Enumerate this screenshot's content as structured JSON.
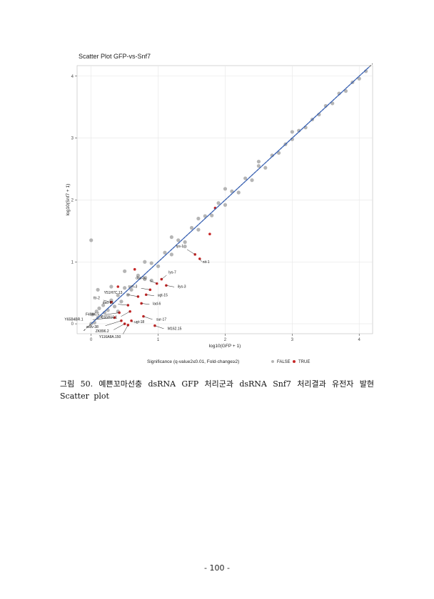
{
  "chart_data": {
    "type": "scatter",
    "title": "Scatter Plot GFP-vs-Snf7",
    "x_label": "log10(GFP + 1)",
    "y_label": "log10(Snf7 + 1)",
    "legend_title": "Significance (q-value2≤0.01, Fold-change≥2)",
    "xlim": [
      -0.21,
      4.2
    ],
    "ylim": [
      -0.16,
      4.17
    ],
    "xticks": [
      0,
      1,
      2,
      3,
      4
    ],
    "yticks": [
      0,
      1,
      2,
      3,
      4
    ],
    "grid": true,
    "series": [
      {
        "name": "FALSE",
        "color": "#b5b5b5",
        "x": [
          0,
          0.02,
          0.05,
          0.08,
          0.1,
          0.12,
          0.15,
          0.18,
          0.2,
          0.25,
          0.3,
          0.35,
          0.4,
          0.45,
          0.5,
          0.55,
          0.6,
          0.7,
          0.8,
          0.9,
          1.0,
          1.1,
          1.2,
          1.3,
          1.4,
          1.5,
          1.6,
          1.7,
          1.8,
          1.9,
          2.0,
          2.1,
          2.2,
          2.3,
          2.4,
          2.5,
          2.6,
          2.7,
          2.8,
          2.9,
          3.0,
          3.1,
          3.2,
          3.3,
          3.4,
          3.5,
          3.6,
          3.7,
          3.8,
          3.9,
          4.0,
          4.1,
          0.0,
          0.1,
          0.3,
          0.5,
          0.8,
          1.2,
          1.6,
          2.0,
          2.5,
          3.0,
          0.4,
          0.9,
          1.4
        ],
        "values": [
          0,
          0.15,
          0.02,
          0.2,
          0.1,
          0.25,
          0.12,
          0.3,
          0.18,
          0.22,
          0.38,
          0.28,
          0.46,
          0.36,
          0.58,
          0.47,
          0.55,
          0.78,
          0.72,
          0.98,
          0.93,
          1.15,
          1.12,
          1.35,
          1.32,
          1.55,
          1.52,
          1.74,
          1.75,
          1.95,
          1.92,
          2.14,
          2.12,
          2.35,
          2.32,
          2.55,
          2.52,
          2.72,
          2.76,
          2.9,
          2.98,
          3.12,
          3.17,
          3.3,
          3.38,
          3.52,
          3.56,
          3.72,
          3.76,
          3.9,
          3.96,
          4.08,
          1.35,
          0.55,
          0.6,
          0.85,
          1.0,
          1.4,
          1.7,
          2.18,
          2.62,
          3.1,
          0.2,
          0.7,
          1.25
        ]
      },
      {
        "name": "TRUE",
        "color": "#c62828",
        "x": [
          1.55,
          1.62,
          1.77,
          1.85,
          1.05,
          0.98,
          1.12,
          0.88,
          0.82,
          0.7,
          0.75,
          0.55,
          0.3,
          0.58,
          0.42,
          0.35,
          0.78,
          0.45,
          0.6,
          0.5,
          0.55,
          0.95,
          0.65,
          0.4
        ],
        "values": [
          1.12,
          1.05,
          1.45,
          1.87,
          0.72,
          0.65,
          0.62,
          0.55,
          0.47,
          0.44,
          0.33,
          0.3,
          0.35,
          0.2,
          0.18,
          0.1,
          0.12,
          0.05,
          0.05,
          0.0,
          -0.02,
          -0.03,
          0.88,
          0.6
        ],
        "labels": [
          "lys-1",
          "nit-1",
          null,
          null,
          "lys-7",
          "dao-80",
          "ilys-3",
          "srm-3",
          "ugt-15",
          "Y51H7C.13",
          "lad-6",
          "dao-81",
          "ttr-2",
          "C55B10.1",
          "F49H6.5",
          "Y65B4BR.1",
          "sur-17",
          "mdv-38",
          "ugt-18",
          "ZK896.2",
          "Y116A8A.150",
          "M162.15",
          null,
          null
        ]
      }
    ]
  },
  "caption": "그림 50. 예쁜꼬마선충 dsRNA GFP 처리군과 dsRNA Snf7 처리결과 유전자 발현 Scatter plot",
  "page_number": "- 100 -"
}
